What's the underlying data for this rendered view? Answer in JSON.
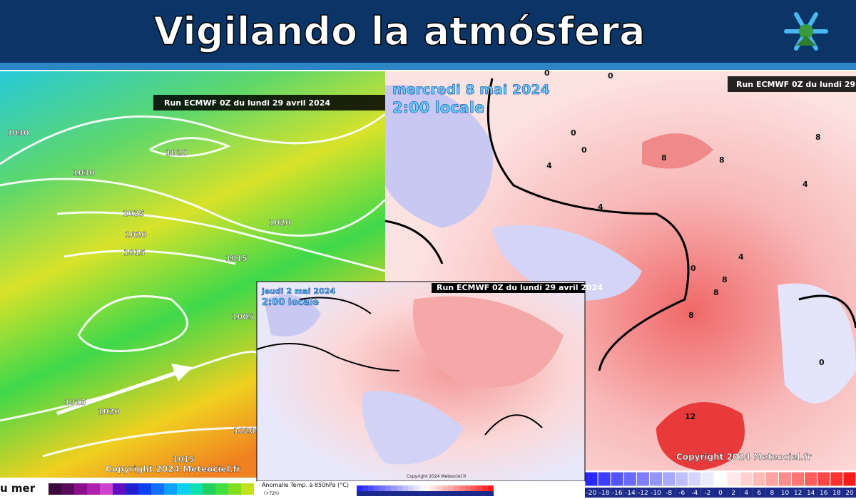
{
  "header": {
    "title": "Vigilando la atmósfera"
  },
  "left_map": {
    "run": "Run ECMWF 0Z du lundi 29 avril 2024",
    "copyright": "Copyright 2024 Meteociel.fr",
    "legend_title": "u mer",
    "isobars": [
      "1030",
      "1020",
      "1030",
      "1025",
      "1020",
      "1015",
      "1020",
      "1015",
      "1005",
      "1015",
      "1020",
      "1020",
      "1015"
    ]
  },
  "right_map": {
    "date": "mercredi 8 mai 2024",
    "time": "2:00 locale",
    "run": "Run ECMWF 0Z du lundi 29",
    "copyright": "Copyright 2024 Meteociel.fr",
    "contours": [
      "0",
      "0",
      "0",
      "0",
      "4",
      "8",
      "8",
      "8",
      "4",
      "4",
      "4",
      "8",
      "8",
      "8",
      "12",
      "0",
      "0"
    ],
    "scale": [
      -20,
      -18,
      -16,
      -14,
      -12,
      -10,
      -8,
      -6,
      -4,
      -2,
      0,
      2,
      4,
      6,
      8,
      10,
      12,
      14,
      16,
      18,
      20
    ]
  },
  "inset_map": {
    "date": "jeudi 2 mai 2024",
    "time": "2:00 locale",
    "run": "Run ECMWF 0Z du lundi 29 avril 2024",
    "legend_title": "Anomalie Temp. à 850hPa (°C)",
    "step": "(+72h)",
    "copyright": "Copyright 2024 Meteociel.fr"
  }
}
